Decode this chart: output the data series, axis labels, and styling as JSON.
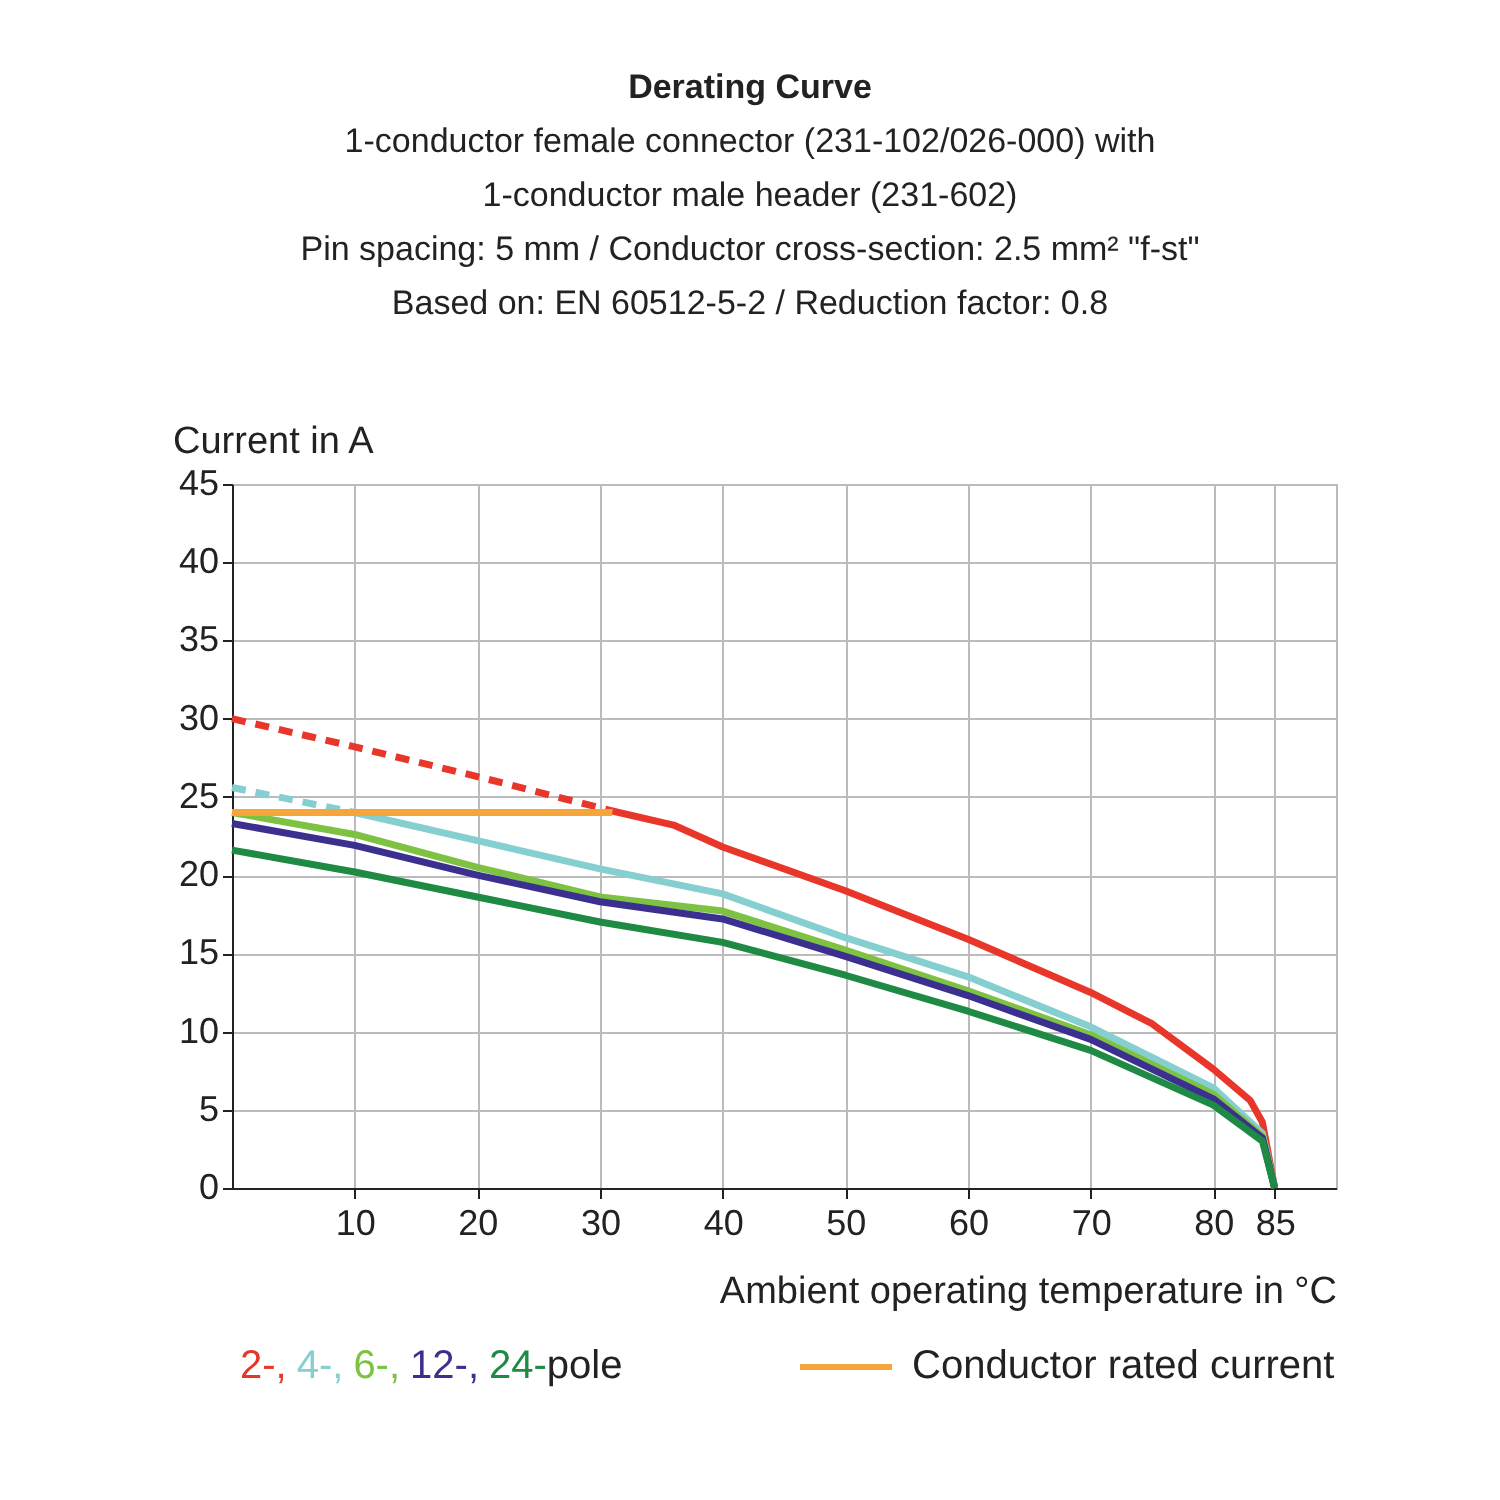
{
  "chart_data": {
    "type": "line",
    "title": "Derating Curve",
    "subtitle": "1-conductor female connector (231-102/026-000) with\n1-conductor male header (231-602)\nPin spacing: 5 mm / Conductor cross-section: 2.5 mm² \"f-st\"\nBased on: EN 60512-5-2 / Reduction factor: 0.8",
    "xlabel": "Ambient operating temperature in °C",
    "ylabel": "Current in A",
    "series": [
      {
        "color": "#e8372a",
        "line_style": "dashed",
        "x": [
          0,
          10,
          20,
          31
        ],
        "values": [
          30,
          28.2,
          26.3,
          24.1
        ]
      },
      {
        "name": "2-,",
        "color": "#e8372a",
        "x": [
          31,
          36,
          40,
          50,
          60,
          70,
          75,
          80,
          83,
          84,
          85
        ],
        "values": [
          24.1,
          23.2,
          21.8,
          19,
          15.9,
          12.5,
          10.5,
          7.6,
          5.6,
          4.2,
          0
        ]
      },
      {
        "color": "#86cfd0",
        "line_style": "dashed",
        "x": [
          0,
          10
        ],
        "values": [
          25.6,
          24
        ]
      },
      {
        "name": "4-,",
        "color": "#86cfd0",
        "x": [
          10,
          20,
          30,
          40,
          50,
          60,
          70,
          80,
          84,
          85
        ],
        "values": [
          24,
          22.2,
          20.4,
          18.8,
          16,
          13.5,
          10.3,
          6.4,
          3.5,
          0
        ]
      },
      {
        "name": "6-,",
        "color": "#7dc242",
        "x": [
          0,
          10,
          20,
          30,
          40,
          50,
          60,
          70,
          80,
          84,
          85
        ],
        "values": [
          24,
          22.6,
          20.5,
          18.6,
          17.7,
          15.2,
          12.6,
          9.8,
          6,
          3.3,
          0
        ]
      },
      {
        "name": "12-,",
        "color": "#3b2f8f",
        "x": [
          0,
          10,
          20,
          30,
          40,
          50,
          60,
          70,
          80,
          84,
          85
        ],
        "values": [
          23.3,
          21.9,
          20,
          18.3,
          17.2,
          14.8,
          12.3,
          9.5,
          5.7,
          3.2,
          0
        ]
      },
      {
        "name": "24-",
        "color": "#1e8a44",
        "x": [
          0,
          10,
          20,
          30,
          40,
          50,
          60,
          70,
          80,
          84,
          85
        ],
        "values": [
          21.6,
          20.2,
          18.6,
          17,
          15.7,
          13.6,
          11.3,
          8.8,
          5.3,
          3,
          0
        ]
      },
      {
        "name": "Conductor rated current",
        "color": "#f5a53a",
        "x": [
          0,
          31
        ],
        "values": [
          24,
          24
        ]
      }
    ],
    "annotations": [
      "pole"
    ],
    "xlim": [
      0,
      90
    ],
    "xticks": [
      10,
      20,
      30,
      40,
      50,
      60,
      70,
      80,
      85
    ],
    "ylim": [
      0,
      45
    ],
    "yticks": [
      0,
      5,
      10,
      15,
      20,
      25,
      30,
      35,
      40,
      45
    ],
    "grid": true,
    "legend": "bottom",
    "line_style": "solid",
    "marker": "none"
  }
}
